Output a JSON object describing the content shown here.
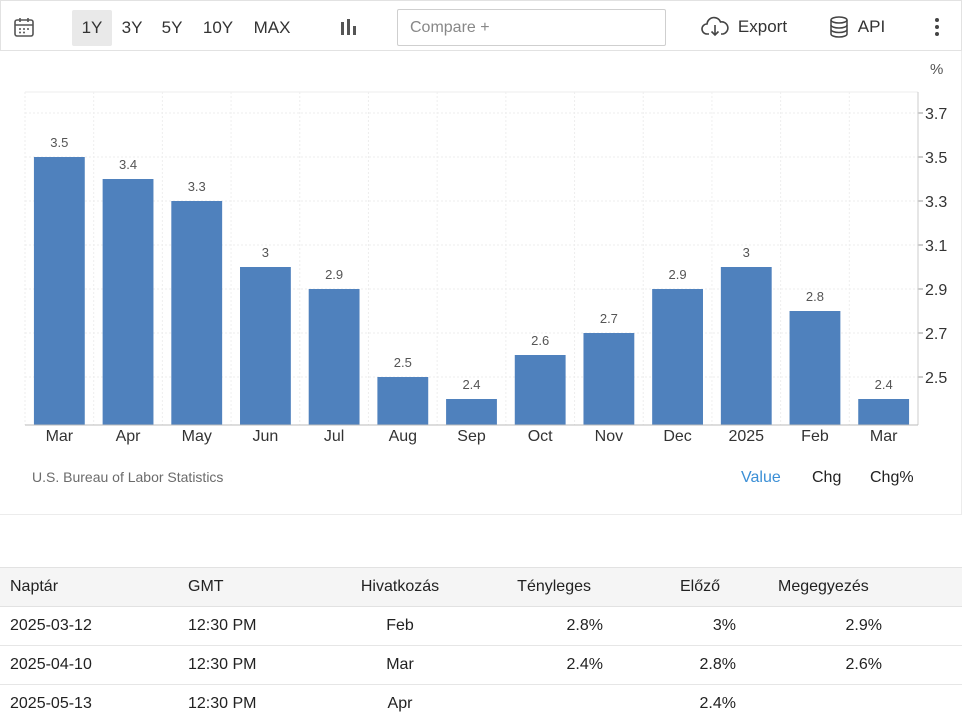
{
  "toolbar": {
    "ranges": [
      {
        "label": "1Y",
        "active": true
      },
      {
        "label": "3Y",
        "active": false
      },
      {
        "label": "5Y",
        "active": false
      },
      {
        "label": "10Y",
        "active": false
      },
      {
        "label": "MAX",
        "active": false
      }
    ],
    "compare_placeholder": "Compare +",
    "export_label": "Export",
    "api_label": "API"
  },
  "chart": {
    "unit": "%",
    "source": "U.S. Bureau of Labor Statistics",
    "views": [
      "Value",
      "Chg",
      "Chg%"
    ],
    "active_view": "Value",
    "bar_color": "#4f81bd"
  },
  "chart_data": {
    "type": "bar",
    "title": "",
    "categories": [
      "Mar",
      "Apr",
      "May",
      "Jun",
      "Jul",
      "Aug",
      "Sep",
      "Oct",
      "Nov",
      "Dec",
      "2025",
      "Feb",
      "Mar"
    ],
    "values": [
      3.5,
      3.4,
      3.3,
      3,
      2.9,
      2.5,
      2.4,
      2.6,
      2.7,
      2.9,
      3,
      2.8,
      2.4
    ],
    "value_labels": [
      "3.5",
      "3.4",
      "3.3",
      "3",
      "2.9",
      "2.5",
      "2.4",
      "2.6",
      "2.7",
      "2.9",
      "3",
      "2.8",
      "2.4"
    ],
    "ylabel": "%",
    "ylim": [
      2.3,
      3.8
    ],
    "yticks": [
      "3.7",
      "3.5",
      "3.3",
      "3.1",
      "2.9",
      "2.7",
      "2.5"
    ],
    "yaxis_position": "right",
    "grid": true
  },
  "table": {
    "headers": [
      "Naptár",
      "GMT",
      "Hivatkozás",
      "Tényleges",
      "Előző",
      "Megegyezés"
    ],
    "rows": [
      {
        "date": "2025-03-12",
        "time": "12:30 PM",
        "ref": "Feb",
        "actual": "2.8%",
        "previous": "3%",
        "consensus": "2.9%"
      },
      {
        "date": "2025-04-10",
        "time": "12:30 PM",
        "ref": "Mar",
        "actual": "2.4%",
        "previous": "2.8%",
        "consensus": "2.6%"
      },
      {
        "date": "2025-05-13",
        "time": "12:30 PM",
        "ref": "Apr",
        "actual": "",
        "previous": "2.4%",
        "consensus": ""
      }
    ]
  }
}
